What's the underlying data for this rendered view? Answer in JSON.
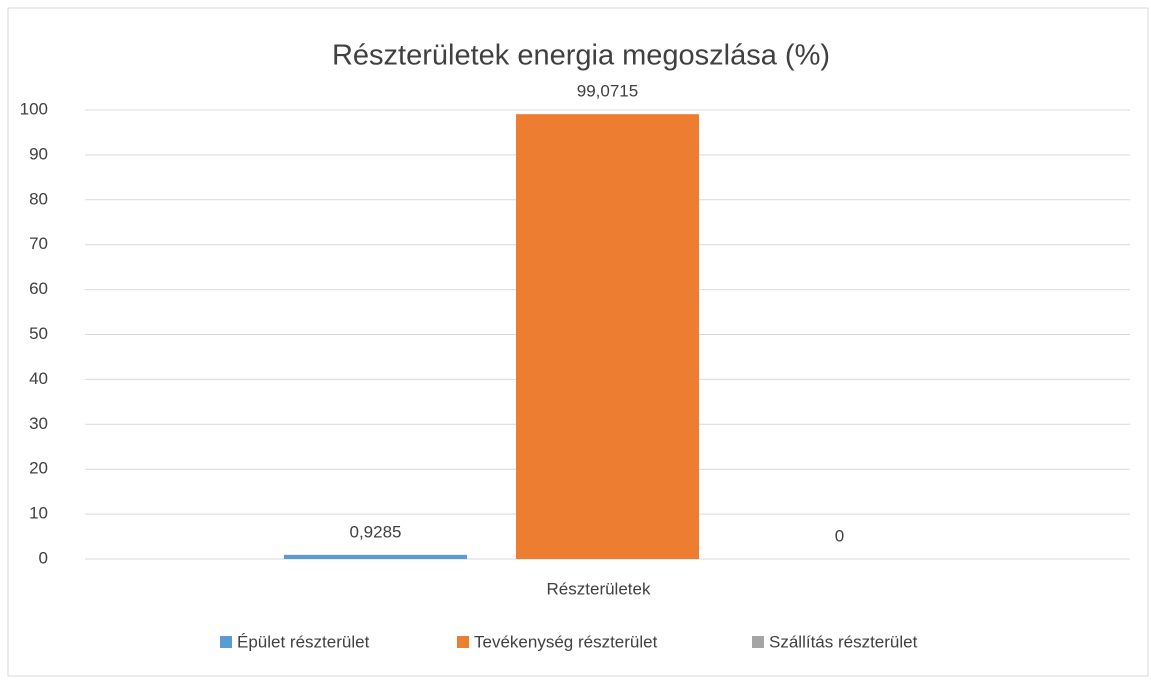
{
  "chart_data": {
    "type": "bar",
    "title": "Részterületek energia megoszlása (%)",
    "categories": [
      "Részterületek"
    ],
    "series": [
      {
        "name": "Épület részterület",
        "color": "#5b9bd5",
        "values": [
          0.9285
        ],
        "value_labels": [
          "0,9285"
        ]
      },
      {
        "name": "Tevékenység részterület",
        "color": "#ed7d31",
        "values": [
          99.0715
        ],
        "value_labels": [
          "99,0715"
        ]
      },
      {
        "name": "Szállítás részterület",
        "color": "#a5a5a5",
        "values": [
          0
        ],
        "value_labels": [
          "0"
        ]
      }
    ],
    "ylim": [
      0,
      100
    ],
    "yticks": [
      0,
      10,
      20,
      30,
      40,
      50,
      60,
      70,
      80,
      90,
      100
    ],
    "grid": true,
    "legend": "bottom"
  }
}
